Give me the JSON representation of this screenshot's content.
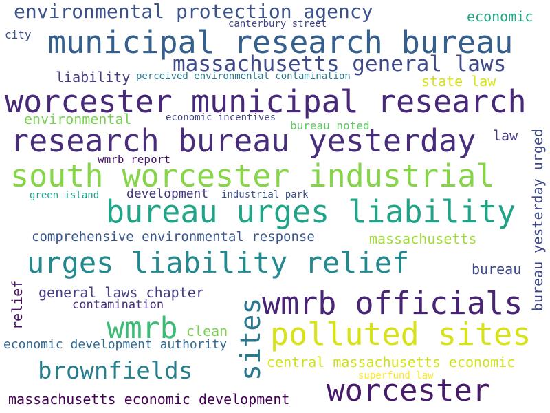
{
  "words": [
    {
      "text": "environmental protection agency",
      "color": "#3b528b"
    },
    {
      "text": "economic",
      "color": "#21a585"
    },
    {
      "text": "canterbury street",
      "color": "#414487"
    },
    {
      "text": "city",
      "color": "#3b528b"
    },
    {
      "text": "municipal research bureau",
      "color": "#355f8d"
    },
    {
      "text": "massachusetts general laws",
      "color": "#3e4989"
    },
    {
      "text": "liability",
      "color": "#433e85"
    },
    {
      "text": "perceived environmental contamination",
      "color": "#2a788e"
    },
    {
      "text": "state law",
      "color": "#d8e219"
    },
    {
      "text": "worcester municipal research",
      "color": "#482878"
    },
    {
      "text": "environmental",
      "color": "#7ad151"
    },
    {
      "text": "economic incentives",
      "color": "#414487"
    },
    {
      "text": "bureau noted",
      "color": "#5ec962"
    },
    {
      "text": "law",
      "color": "#443983"
    },
    {
      "text": "research bureau yesterday",
      "color": "#472d7b"
    },
    {
      "text": "bureau yesterday urged",
      "color": "#3e4989"
    },
    {
      "text": "wmrb report",
      "color": "#481769"
    },
    {
      "text": "south worcester industrial",
      "color": "#86d549"
    },
    {
      "text": "green island",
      "color": "#1f9e89"
    },
    {
      "text": "development",
      "color": "#453781"
    },
    {
      "text": "industrial park",
      "color": "#3b528b"
    },
    {
      "text": "bureau urges liability",
      "color": "#20a386"
    },
    {
      "text": "comprehensive environmental response",
      "color": "#39568c"
    },
    {
      "text": "massachusetts",
      "color": "#a0da39"
    },
    {
      "text": "urges liability relief",
      "color": "#23898e"
    },
    {
      "text": "bureau",
      "color": "#3e4989"
    },
    {
      "text": "relief",
      "color": "#471164"
    },
    {
      "text": "general laws chapter",
      "color": "#433e85"
    },
    {
      "text": "sites",
      "color": "#2a788e"
    },
    {
      "text": "wmrb officials",
      "color": "#482475"
    },
    {
      "text": "contamination",
      "color": "#472d7b"
    },
    {
      "text": "wmrb",
      "color": "#3bbb75"
    },
    {
      "text": "clean",
      "color": "#7ad151"
    },
    {
      "text": "polluted sites",
      "color": "#d8e219"
    },
    {
      "text": "economic development authority",
      "color": "#31688e"
    },
    {
      "text": "central massachusetts economic",
      "color": "#d0e11c"
    },
    {
      "text": "brownfields",
      "color": "#277f8e"
    },
    {
      "text": "superfund law",
      "color": "#fde725"
    },
    {
      "text": "worcester",
      "color": "#481a6c"
    },
    {
      "text": "massachusetts economic development",
      "color": "#440154"
    }
  ]
}
